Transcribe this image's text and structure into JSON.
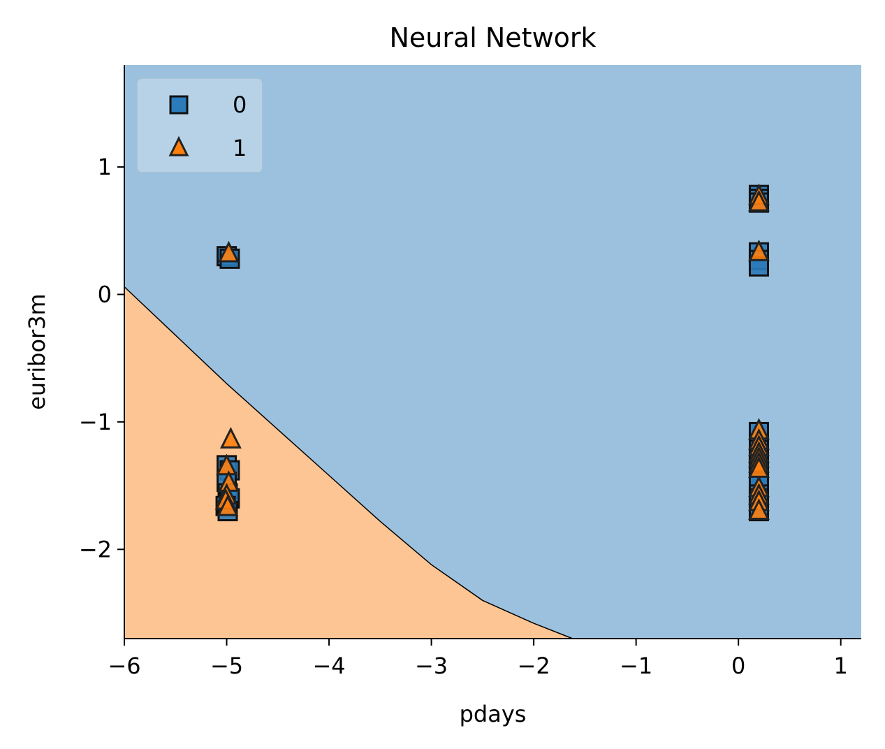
{
  "chart_data": {
    "type": "scatter",
    "title": "Neural Network",
    "xlabel": "pdays",
    "ylabel": "euribor3m",
    "xlim": [
      -6,
      1.2
    ],
    "ylim": [
      -2.7,
      1.8
    ],
    "xticks": [
      -6,
      -5,
      -4,
      -3,
      -2,
      -1,
      0,
      1
    ],
    "xtick_labels": [
      "−6",
      "−5",
      "−4",
      "−3",
      "−2",
      "−1",
      "0",
      "1"
    ],
    "yticks": [
      1,
      0,
      -1,
      -2
    ],
    "ytick_labels": [
      "1",
      "0",
      "−1",
      "−2"
    ],
    "grid": false,
    "legend_position": "top-left",
    "decision_regions": [
      {
        "class": "0",
        "color": "#9bc1de"
      },
      {
        "class": "1",
        "color": "#fdc593"
      }
    ],
    "decision_boundary": [
      [
        -6.0,
        0.06
      ],
      [
        -5.5,
        -0.32
      ],
      [
        -5.0,
        -0.7
      ],
      [
        -4.5,
        -1.06
      ],
      [
        -4.0,
        -1.42
      ],
      [
        -3.5,
        -1.78
      ],
      [
        -3.0,
        -2.12
      ],
      [
        -2.5,
        -2.4
      ],
      [
        -2.0,
        -2.58
      ],
      [
        -1.62,
        -2.7
      ]
    ],
    "series": [
      {
        "name": "0",
        "marker": "square",
        "color": "#2b7bba",
        "points": [
          [
            -5.0,
            0.3
          ],
          [
            -4.97,
            0.28
          ],
          [
            -5.0,
            -1.34
          ],
          [
            -4.97,
            -1.38
          ],
          [
            -5.0,
            -1.47
          ],
          [
            -4.99,
            -1.56
          ],
          [
            -4.97,
            -1.6
          ],
          [
            -5.01,
            -1.66
          ],
          [
            -4.99,
            -1.7
          ],
          [
            0.2,
            0.78
          ],
          [
            0.2,
            0.75
          ],
          [
            0.2,
            0.72
          ],
          [
            0.2,
            0.33
          ],
          [
            0.2,
            0.27
          ],
          [
            0.2,
            0.22
          ],
          [
            0.2,
            -1.08
          ],
          [
            0.2,
            -1.22
          ],
          [
            0.2,
            -1.28
          ],
          [
            0.2,
            -1.3
          ],
          [
            0.2,
            -1.33
          ],
          [
            0.2,
            -1.36
          ],
          [
            0.2,
            -1.4
          ],
          [
            0.2,
            -1.47
          ],
          [
            0.2,
            -1.5
          ],
          [
            0.2,
            -1.57
          ],
          [
            0.2,
            -1.6
          ],
          [
            0.2,
            -1.65
          ],
          [
            0.2,
            -1.7
          ]
        ]
      },
      {
        "name": "1",
        "marker": "triangle",
        "color": "#ff7f0e",
        "points": [
          [
            -4.98,
            0.32
          ],
          [
            -4.96,
            -1.14
          ],
          [
            -5.0,
            -1.35
          ],
          [
            -4.98,
            -1.48
          ],
          [
            -5.0,
            -1.58
          ],
          [
            -5.01,
            -1.62
          ],
          [
            -4.99,
            -1.67
          ],
          [
            0.2,
            0.77
          ],
          [
            0.2,
            0.72
          ],
          [
            0.2,
            0.33
          ],
          [
            0.2,
            -1.07
          ],
          [
            0.2,
            -1.15
          ],
          [
            0.2,
            -1.2
          ],
          [
            0.2,
            -1.25
          ],
          [
            0.2,
            -1.29
          ],
          [
            0.2,
            -1.33
          ],
          [
            0.2,
            -1.37
          ],
          [
            0.2,
            -1.52
          ],
          [
            0.2,
            -1.58
          ],
          [
            0.2,
            -1.63
          ],
          [
            0.2,
            -1.7
          ]
        ]
      }
    ]
  }
}
